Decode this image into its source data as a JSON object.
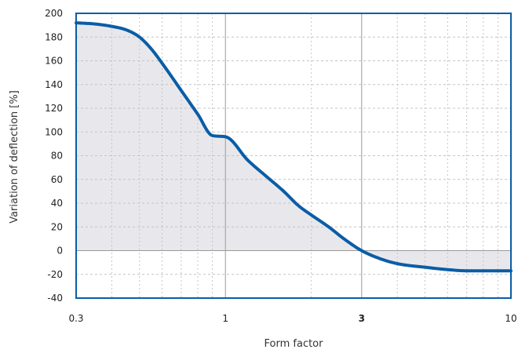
{
  "chart_data": {
    "type": "area",
    "title": "",
    "xlabel": "Form factor",
    "ylabel": "Variation of deflection [%]",
    "x_scale": "log",
    "xlim": [
      0.3,
      10
    ],
    "ylim": [
      -40,
      200
    ],
    "x_ticks": [
      {
        "value": 0.3,
        "label": "0.3",
        "bold": false
      },
      {
        "value": 1,
        "label": "1",
        "bold": false
      },
      {
        "value": 3,
        "label": "3",
        "bold": true
      },
      {
        "value": 10,
        "label": "10",
        "bold": false
      }
    ],
    "y_ticks": [
      {
        "value": -40,
        "label": "-40"
      },
      {
        "value": -20,
        "label": "-20"
      },
      {
        "value": 0,
        "label": "0"
      },
      {
        "value": 20,
        "label": "20"
      },
      {
        "value": 40,
        "label": "40"
      },
      {
        "value": 60,
        "label": "60"
      },
      {
        "value": 80,
        "label": "80"
      },
      {
        "value": 100,
        "label": "100"
      },
      {
        "value": 120,
        "label": "120"
      },
      {
        "value": 140,
        "label": "140"
      },
      {
        "value": 160,
        "label": "160"
      },
      {
        "value": 180,
        "label": "180"
      },
      {
        "value": 200,
        "label": "200"
      }
    ],
    "grid": true,
    "series": [
      {
        "x": [
          0.3,
          0.35,
          0.4,
          0.45,
          0.5,
          0.55,
          0.6,
          0.7,
          0.8,
          0.9,
          1.0,
          1.2,
          1.4,
          1.6,
          1.8,
          2.0,
          2.3,
          2.6,
          3.0,
          3.5,
          4.0,
          5.0,
          6.0,
          7.0,
          8.0,
          10.0
        ],
        "y": [
          192,
          191,
          189,
          186,
          180,
          170,
          158,
          135,
          115,
          97,
          96,
          76,
          62,
          50,
          38,
          30,
          20,
          10,
          0,
          -7,
          -11,
          -14,
          -16,
          -17,
          -17,
          -17
        ]
      }
    ],
    "colors": {
      "line": "#0a5da6",
      "fill": "#e8e8ec",
      "frame": "#0a5da6",
      "grid_major": "#9a9a9a",
      "grid_minor": "#c4c4c4"
    }
  }
}
